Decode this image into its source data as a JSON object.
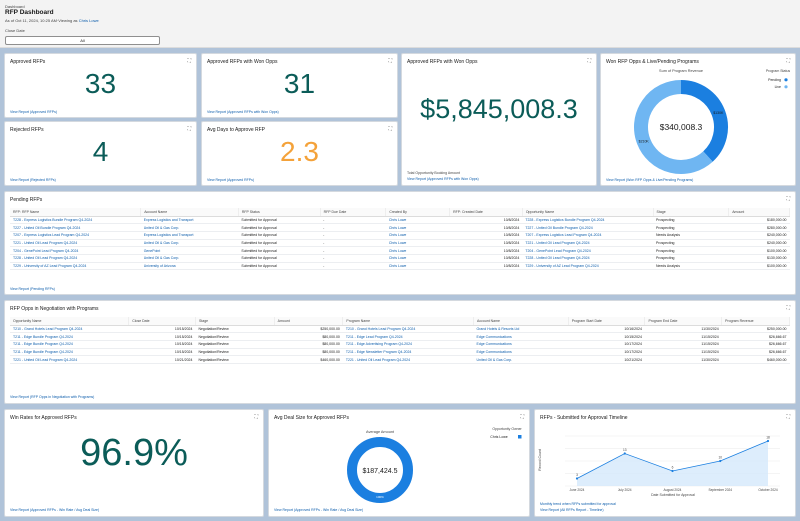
{
  "header": {
    "breadcrumb": "Dashboard",
    "title": "RFP Dashboard",
    "as_of": "As of Oct 11, 2024, 10:25 AM·Viewing as",
    "viewer": "Chris Lowe",
    "filter_label": "Close Date",
    "filter_value": "All"
  },
  "cards": {
    "approved": {
      "title": "Approved RFPs",
      "value": "33",
      "link": "View Report (Approved RFPs)"
    },
    "won_opps": {
      "title": "Approved RFPs with Won Opps",
      "value": "31",
      "link": "View Report (Approved RFPs with Won Opps)"
    },
    "won_amount": {
      "title": "Approved RFPs with Won Opps",
      "value": "$5,845,008.3",
      "note": "Total Opportunity Booking Amount",
      "link": "View Report (Approved RFPs with Won Opps)"
    },
    "rejected": {
      "title": "Rejected RFPs",
      "value": "4",
      "link": "View Report (Rejected RFPs)"
    },
    "avg_days": {
      "title": "Avg Days to Approve RFP",
      "value": "2.3",
      "link": "View Report (Approved RFPs)"
    },
    "won_live": {
      "title": "Won RFP Opps & Live/Pending Programs",
      "subtitle": "Sum of Program Revenue",
      "center": "$340,008.3",
      "legend_title": "Program Status",
      "link": "View Report (Won RFP Opps & Live/Pending Programs)"
    },
    "win_rate": {
      "title": "Win Rates for Approved RFPs",
      "value": "96.9%",
      "link": "View Report (Approved RFPs - Win Rate / Avg Deal Size)"
    },
    "avg_deal": {
      "title": "Avg Deal Size for Approved RFPs",
      "subtitle": "Average Amount",
      "center": "$187,424.5",
      "legend_title": "Opportunity Owner",
      "legend_item": "Chris Lowe",
      "ring_label": "100%",
      "link": "View Report (Approved RFPs - Win Rate / Avg Deal Size)"
    },
    "timeline": {
      "title": "RFPs - Submitted for Approval Timeline",
      "note": "Monthly trend when RFPs submitted for approval",
      "link": "View Report (All RFPs Report - Timeline)"
    }
  },
  "pending": {
    "title": "Pending RFPs",
    "columns": [
      "RFP: RFP Name",
      "Account Name",
      "RFP Status",
      "RFP Due Date",
      "Created By",
      "RFP: Created Date",
      "Opportunity Name",
      "Stage",
      "Amount"
    ],
    "rows": [
      [
        "T228 - Express Logistics Bundle Program Q4-2024",
        "Express Logistics and Transport",
        "Submitted for Approval",
        "-",
        "Chris Lowe",
        "10/8/2024",
        "T228 - Express Logistics Bundle Program Q4-2024",
        "Prospecting",
        "$180,000.00"
      ],
      [
        "T227 - United Oil Bundle Program Q4-2024",
        "United Oil & Gas Corp.",
        "Submitted for Approval",
        "-",
        "Chris Lowe",
        "10/8/2024",
        "T227 - United Oil Bundle Program Q4-2024",
        "Prospecting",
        "$280,000.00"
      ],
      [
        "T207 - Express Logistics Lead Program Q4-2024",
        "Express Logistics and Transport",
        "Submitted for Approval",
        "-",
        "Chris Lowe",
        "10/8/2024",
        "T207 - Express Logistics Lead Program Q4-2024",
        "Needs Analysis",
        "$240,000.00"
      ],
      [
        "T221 - United Oil Lead Program Q4-2024",
        "United Oil & Gas Corp.",
        "Submitted for Approval",
        "-",
        "Chris Lowe",
        "10/8/2024",
        "T221 - United Oil Lead Program Q4-2024",
        "Prospecting",
        "$240,000.00"
      ],
      [
        "T204 - GenePoint Lead Program Q4-2024",
        "GenePoint",
        "Submitted for Approval",
        "-",
        "Chris Lowe",
        "10/8/2024",
        "T204 - GenePoint Lead Program Q4-2024",
        "Prospecting",
        "$100,000.00"
      ],
      [
        "T228 - United Oil Lead Program Q4-2024",
        "United Oil & Gas Corp.",
        "Submitted for Approval",
        "-",
        "Chris Lowe",
        "10/8/2024",
        "T228 - United Oil Lead Program Q4-2024",
        "Prospecting",
        "$130,000.00"
      ],
      [
        "T229 - University of AZ Lead Program Q4-2024",
        "University of Arizona",
        "Submitted for Approval",
        "-",
        "Chris Lowe",
        "10/8/2024",
        "T229 - University of AZ Lead Program Q4-2024",
        "Needs Analysis",
        "$100,000.00"
      ]
    ],
    "link": "View Report (Pending RFPs)"
  },
  "negotiation": {
    "title": "RFP Opps in Negotiation with Programs",
    "columns": [
      "Opportunity Name",
      "Close Date",
      "Stage",
      "Amount",
      "Program Name",
      "Account Name",
      "Program Start Date",
      "Program End Date",
      "Program Revenue"
    ],
    "rows": [
      [
        "T210 - Grand Hotels Lead Program Q4-2024",
        "10/15/2024",
        "Negotiation/Review",
        "$250,000.00",
        "T210 - Grand Hotels Lead Program Q4-2024",
        "Grand Hotels & Resorts Ltd",
        "10/16/2024",
        "11/30/2024",
        "$250,000.00"
      ],
      [
        "T211 - Edge Bundle Program Q4-2024",
        "10/15/2024",
        "Negotiation/Review",
        "$80,000.00",
        "T211 - Edge Lead Program Q4-2024",
        "Edge Communications",
        "10/15/2024",
        "11/15/2024",
        "$26,666.67"
      ],
      [
        "T211 - Edge Bundle Program Q4-2024",
        "10/15/2024",
        "Negotiation/Review",
        "$80,000.00",
        "T211 - Edge Advertising Program Q4-2024",
        "Edge Communications",
        "10/17/2024",
        "11/15/2024",
        "$26,666.67"
      ],
      [
        "T211 - Edge Bundle Program Q4-2024",
        "10/15/2024",
        "Negotiation/Review",
        "$80,000.00",
        "T211 - Edge Newsletter Program Q4-2024",
        "Edge Communications",
        "10/17/2024",
        "11/15/2024",
        "$26,666.67"
      ],
      [
        "T221 - United Oil Lead Program Q4-2024",
        "10/21/2024",
        "Negotiation/Review",
        "$460,000.00",
        "T221 - United Oil Lead Program Q4-2024",
        "United Oil & Gas Corp.",
        "10/21/2024",
        "11/30/2024",
        "$460,000.00"
      ]
    ],
    "link": "View Report (RFP Opps in Negotiation with Programs)"
  },
  "chart_data": [
    {
      "type": "pie",
      "title": "Won RFP Opps & Live/Pending Programs",
      "subtitle": "Sum of Program Revenue",
      "categories": [
        "Pending",
        "Live"
      ],
      "slice_labels": [
        "$130K",
        "$210K"
      ],
      "values": [
        130000,
        210000
      ],
      "total_label": "$340,008.3",
      "legend_title": "Program Status",
      "legend_position": "top-right",
      "colors": [
        "#1b7fe0",
        "#6fb6f2"
      ]
    },
    {
      "type": "pie",
      "title": "Avg Deal Size for Approved RFPs",
      "subtitle": "Average Amount",
      "categories": [
        "Chris Lowe"
      ],
      "values": [
        100
      ],
      "total_label": "$187,424.5",
      "legend_title": "Opportunity Owner",
      "legend_position": "top-right",
      "colors": [
        "#1b7fe0"
      ]
    },
    {
      "type": "area",
      "title": "RFPs - Submitted for Approval Timeline",
      "x": [
        "June 2024",
        "July 2024",
        "August 2024",
        "September 2024",
        "October 2024"
      ],
      "values": [
        3,
        13,
        6,
        10,
        18
      ],
      "ylabel": "Record Count",
      "xlabel": "Date Submitted for Approval",
      "ylim": [
        0,
        20
      ],
      "grid": true,
      "color": "#1b7fe0"
    }
  ]
}
